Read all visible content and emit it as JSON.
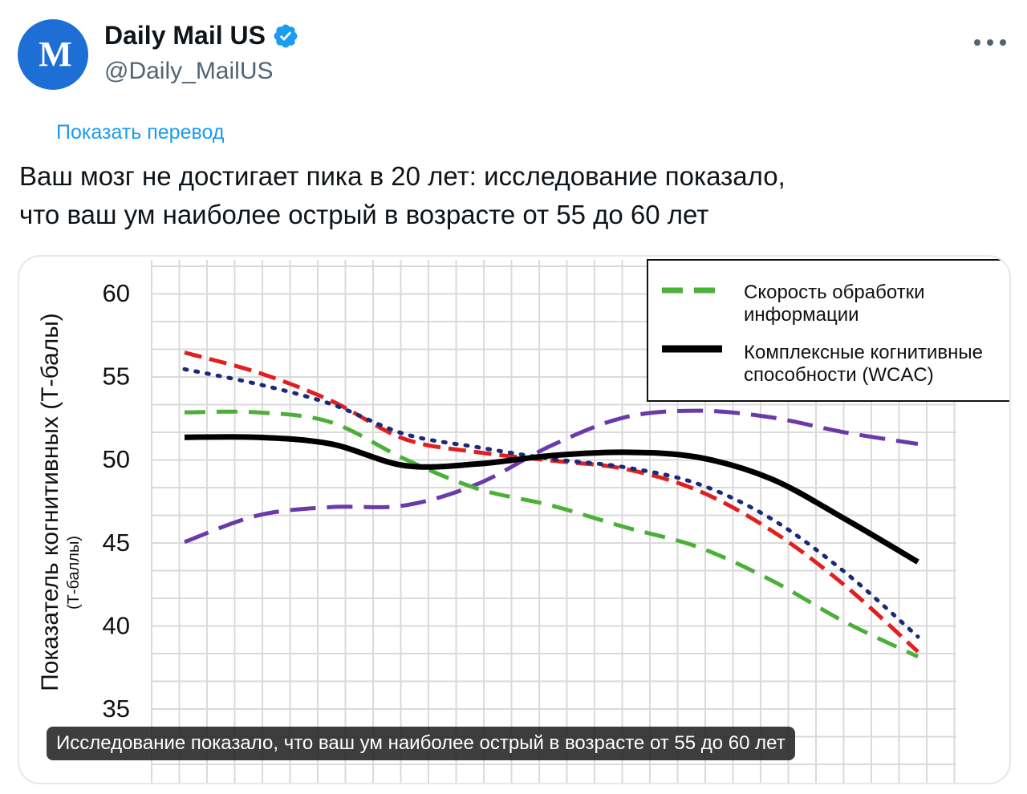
{
  "account": {
    "display_name": "Daily Mail US",
    "handle": "@Daily_MailUS",
    "avatar_text": "M",
    "verified_icon": "verified-badge-icon",
    "more_icon": "more-options-icon"
  },
  "tweet": {
    "translate_label": "Показать перевод",
    "text_line1": "Ваш мозг не достигает пика в 20 лет: исследование показало,",
    "text_line2": "что ваш ум наиболее острый в возрасте от 55 до 60 лет"
  },
  "media": {
    "caption": "Исследование показало, что ваш ум наиболее острый в возрасте от 55 до 60 лет"
  },
  "colors": {
    "accent": "#1d9bf0",
    "avatar": "#1d6fd6",
    "speed": "#4caf3a",
    "wcac": "#000000",
    "red": "#e02020",
    "navy": "#1a2a7a",
    "purple": "#6a3aa8"
  },
  "chart_data": {
    "type": "line",
    "ylabel": "Показатель когнитивных (Т-балы)",
    "ylabel_sub": "(Т-баллы)",
    "ylim": [
      35,
      60
    ],
    "yticks": [
      60,
      55,
      50,
      45,
      40,
      35
    ],
    "grid": true,
    "legend_position": "top-right",
    "x": [
      0,
      1,
      2,
      3,
      4,
      5,
      6,
      7,
      8,
      9,
      10
    ],
    "series": [
      {
        "name": "Скорость обработки информации",
        "style": "green-dashed",
        "values": [
          52.8,
          52.8,
          52.2,
          50.0,
          48.2,
          47.2,
          45.9,
          44.7,
          42.7,
          40.2,
          38.1
        ]
      },
      {
        "name": "Комплексные когнитивные способности (WCAC)",
        "style": "black-solid",
        "values": [
          51.3,
          51.3,
          50.9,
          49.6,
          49.7,
          50.2,
          50.4,
          50.1,
          48.8,
          46.4,
          43.8
        ]
      },
      {
        "style": "red-dashed",
        "values": [
          56.4,
          55.2,
          53.5,
          51.2,
          50.4,
          49.9,
          49.4,
          48.1,
          45.7,
          42.4,
          38.4
        ]
      },
      {
        "style": "navy-dotted",
        "values": [
          55.4,
          54.5,
          53.3,
          51.5,
          50.7,
          50.0,
          49.5,
          48.5,
          46.4,
          43.2,
          39.3
        ]
      },
      {
        "style": "purple-dashed",
        "values": [
          45.0,
          46.6,
          47.1,
          47.2,
          48.5,
          50.8,
          52.5,
          52.9,
          52.5,
          51.6,
          50.9
        ]
      }
    ]
  }
}
